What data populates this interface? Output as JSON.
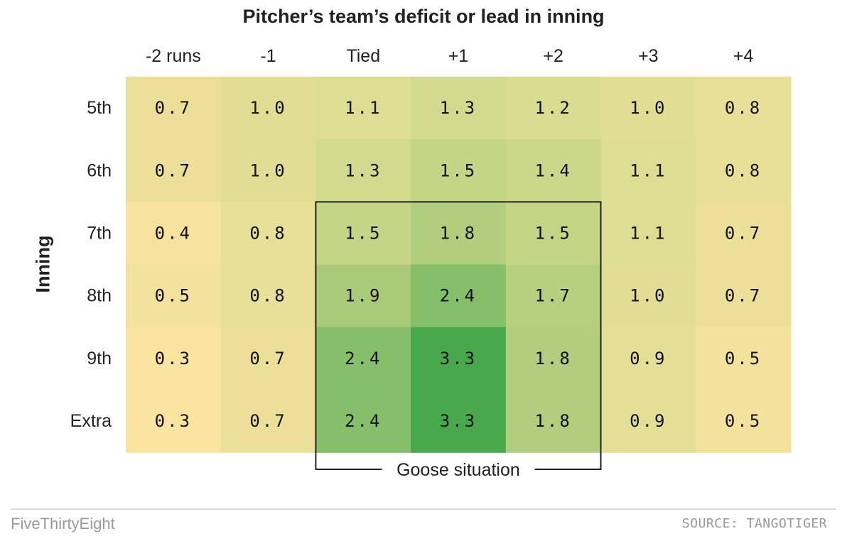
{
  "chart_data": {
    "type": "heatmap",
    "title": "Pitcher’s team’s deficit or lead in inning",
    "xlabel": "",
    "ylabel": "Inning",
    "columns": [
      "-2 runs",
      "-1",
      "Tied",
      "+1",
      "+2",
      "+3",
      "+4"
    ],
    "rows": [
      "5th",
      "6th",
      "7th",
      "8th",
      "9th",
      "Extra"
    ],
    "values": [
      [
        0.7,
        1.0,
        1.1,
        1.3,
        1.2,
        1.0,
        0.8
      ],
      [
        0.7,
        1.0,
        1.3,
        1.5,
        1.4,
        1.1,
        0.8
      ],
      [
        0.4,
        0.8,
        1.5,
        1.8,
        1.5,
        1.1,
        0.7
      ],
      [
        0.5,
        0.8,
        1.9,
        2.4,
        1.7,
        1.0,
        0.7
      ],
      [
        0.3,
        0.7,
        2.4,
        3.3,
        1.8,
        0.9,
        0.5
      ],
      [
        0.3,
        0.7,
        2.4,
        3.3,
        1.8,
        0.9,
        0.5
      ]
    ],
    "color_low": "#fbe3a0",
    "color_mid": "#d9dd90",
    "color_high": "#48a84c",
    "annotation": {
      "label": "Goose situation",
      "rows": [
        "7th",
        "8th",
        "9th",
        "Extra"
      ],
      "columns": [
        "Tied",
        "+1",
        "+2"
      ]
    }
  },
  "footer": {
    "brand": "FiveThirtyEight",
    "source": "SOURCE: TANGOTIGER"
  }
}
